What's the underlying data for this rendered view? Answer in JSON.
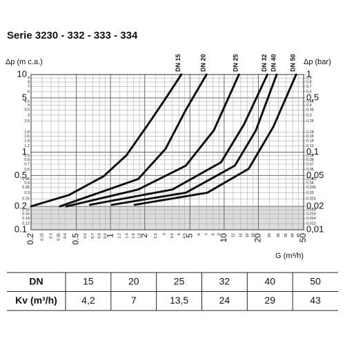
{
  "chart_data": {
    "type": "line",
    "title": "Serie 3230 - 332 - 333 - 334",
    "xlabel": "G (m³/h)",
    "ylabel": "Δp (m c.a.)",
    "y2label": "Δp (bar)",
    "log_x": true,
    "log_y": true,
    "grid": true,
    "xlim": [
      0.2,
      50
    ],
    "ylim": [
      0.1,
      10
    ],
    "y2lim": [
      0.01,
      1
    ],
    "shaded_ylim": [
      0.1,
      0.2
    ],
    "xticks": [
      0.2,
      0.5,
      1,
      2,
      5,
      10,
      20,
      50
    ],
    "xminor_ticks": [
      0.25,
      0.3,
      0.35,
      0.4,
      0.6,
      0.7,
      0.8,
      0.9,
      1.2,
      1.4,
      1.6,
      1.8,
      2.5,
      3,
      3.5,
      4,
      4.5,
      6,
      7,
      8,
      9,
      12,
      14,
      16,
      18,
      25,
      30,
      35,
      40,
      45
    ],
    "yticks": [
      0.1,
      0.2,
      0.5,
      1,
      5,
      10
    ],
    "yminor_ticks": [
      0.12,
      0.14,
      0.16,
      0.18,
      0.25,
      0.3,
      0.35,
      0.4,
      0.45,
      0.6,
      0.7,
      0.8,
      0.9,
      1.2,
      1.4,
      1.6,
      1.8,
      2.5,
      3,
      3.5,
      4,
      4.5,
      6,
      7,
      8,
      9
    ],
    "y2ticks": [
      {
        "value": 0.01,
        "label": "0,01"
      },
      {
        "value": 0.02,
        "label": "0,02"
      },
      {
        "value": 0.05,
        "label": "0,05"
      },
      {
        "value": 0.1,
        "label": "0,1"
      },
      {
        "value": 0.5,
        "label": "0,5"
      },
      1
    ],
    "y2minor_ticks": [
      {
        "value": 0.012,
        "label": "0,012"
      },
      {
        "value": 0.014,
        "label": "0,014"
      },
      {
        "value": 0.016,
        "label": "0,016"
      },
      {
        "value": 0.018,
        "label": "0,018"
      },
      {
        "value": 0.025,
        "label": "0,025"
      },
      {
        "value": 0.03,
        "label": "0,03"
      },
      {
        "value": 0.035,
        "label": "0,035"
      },
      {
        "value": 0.04,
        "label": "0,04"
      },
      {
        "value": 0.045,
        "label": "0,045"
      },
      {
        "value": 0.06,
        "label": "0,06"
      },
      {
        "value": 0.07,
        "label": "0,07"
      },
      {
        "value": 0.08,
        "label": "0,08"
      },
      {
        "value": 0.09,
        "label": "0,09"
      },
      {
        "value": 0.12,
        "label": "0,12"
      },
      {
        "value": 0.14,
        "label": "0,14"
      },
      {
        "value": 0.16,
        "label": "0,16"
      },
      {
        "value": 0.18,
        "label": "0,18"
      },
      {
        "value": 0.25,
        "label": "0,25"
      },
      {
        "value": 0.3,
        "label": "0,3"
      },
      {
        "value": 0.35,
        "label": "0,35"
      },
      {
        "value": 0.4,
        "label": "0,4"
      },
      {
        "value": 0.45,
        "label": "0,45"
      },
      {
        "value": 0.6,
        "label": "0,6"
      },
      {
        "value": 0.7,
        "label": "0,7"
      },
      {
        "value": 0.8,
        "label": "0,8"
      },
      {
        "value": 0.9,
        "label": "0,9"
      }
    ],
    "series": [
      {
        "name": "DN 15",
        "color": "#111111",
        "x": [
          0.2,
          0.43,
          0.87,
          1.38,
          2.15,
          3.05,
          4.2
        ],
        "values": [
          0.2,
          0.28,
          0.49,
          0.91,
          2.3,
          4.9,
          10
        ]
      },
      {
        "name": "DN 20",
        "color": "#111111",
        "x": [
          0.36,
          1.75,
          3.05,
          4.6,
          7
        ],
        "values": [
          0.2,
          0.45,
          1.1,
          3.5,
          10
        ]
      },
      {
        "name": "DN 25",
        "color": "#111111",
        "x": [
          0.41,
          1.75,
          4.6,
          8.1,
          13.5
        ],
        "values": [
          0.2,
          0.33,
          0.67,
          1.9,
          10
        ]
      },
      {
        "name": "DN 32",
        "color": "#111111",
        "x": [
          0.66,
          3.5,
          9.4,
          15,
          24
        ],
        "values": [
          0.21,
          0.33,
          0.74,
          2.3,
          10
        ]
      },
      {
        "name": "DN 40",
        "color": "#111111",
        "x": [
          1.03,
          4.6,
          12.4,
          19,
          29
        ],
        "values": [
          0.21,
          0.3,
          0.67,
          1.9,
          10
        ]
      },
      {
        "name": "DN 50",
        "color": "#111111",
        "x": [
          1.63,
          7.1,
          16.4,
          27,
          43
        ],
        "values": [
          0.21,
          0.3,
          0.61,
          2.1,
          10
        ]
      }
    ]
  },
  "table": {
    "rows": [
      [
        "DN",
        "15",
        "20",
        "25",
        "32",
        "40",
        "50"
      ],
      [
        "Kv (m³/h)",
        "4,2",
        "7",
        "13,5",
        "24",
        "29",
        "43"
      ]
    ]
  }
}
